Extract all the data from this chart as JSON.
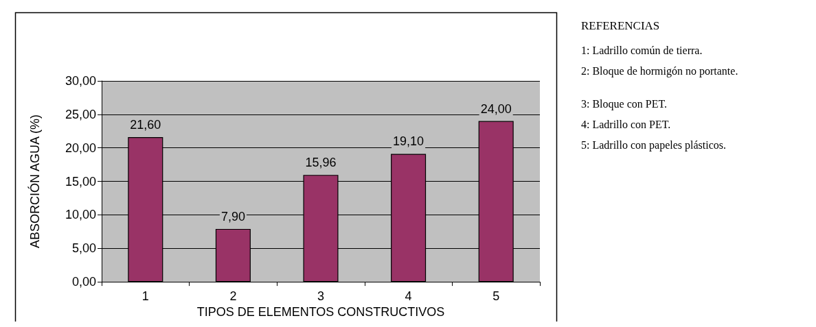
{
  "chart_data": {
    "type": "bar",
    "xlabel": "TIPOS DE ELEMENTOS CONSTRUCTIVOS",
    "ylabel": "ABSORCIÓN AGUA (%)",
    "categories": [
      "1",
      "2",
      "3",
      "4",
      "5"
    ],
    "values": [
      21.6,
      7.9,
      15.96,
      19.1,
      24.0
    ],
    "value_labels": [
      "21,60",
      "7,90",
      "15,96",
      "19,10",
      "24,00"
    ],
    "color": "#993366",
    "ylim": [
      0,
      30
    ],
    "yticks": [
      {
        "value": 0,
        "label": "0,00"
      },
      {
        "value": 5,
        "label": "5,00"
      },
      {
        "value": 10,
        "label": "10,00"
      },
      {
        "value": 15,
        "label": "15,00"
      },
      {
        "value": 20,
        "label": "20,00"
      },
      {
        "value": 25,
        "label": "25,00"
      },
      {
        "value": 30,
        "label": "30,00"
      }
    ],
    "grid": "y",
    "annotations": [
      "REFERENCIAS",
      "1: Ladrillo común de tierra.",
      "2: Bloque de hormigón no portante.",
      "3: Bloque con PET.",
      "4: Ladrillo con PET.",
      "5: Ladrillo con papeles plásticos."
    ]
  }
}
